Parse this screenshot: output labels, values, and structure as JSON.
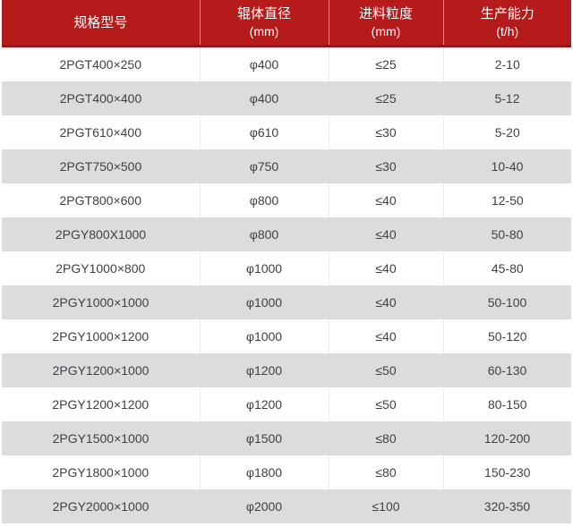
{
  "chart_data": {
    "type": "table",
    "columns": [
      {
        "title": "规格型号",
        "unit": ""
      },
      {
        "title": "辊体直径",
        "unit": "(mm)"
      },
      {
        "title": "进料粒度",
        "unit": "(mm)"
      },
      {
        "title": "生产能力",
        "unit": "(t/h)"
      }
    ],
    "rows": [
      [
        "2PGT400×250",
        "φ400",
        "≤25",
        "2-10"
      ],
      [
        "2PGT400×400",
        "φ400",
        "≤25",
        "5-12"
      ],
      [
        "2PGT610×400",
        "φ610",
        "≤30",
        "5-20"
      ],
      [
        "2PGT750×500",
        "φ750",
        "≤30",
        "10-40"
      ],
      [
        "2PGT800×600",
        "φ800",
        "≤40",
        "12-50"
      ],
      [
        "2PGY800X1000",
        "φ800",
        "≤40",
        "50-80"
      ],
      [
        "2PGY1000×800",
        "φ1000",
        "≤40",
        "45-80"
      ],
      [
        "2PGY1000×1000",
        "φ1000",
        "≤40",
        "50-100"
      ],
      [
        "2PGY1000×1200",
        "φ1000",
        "≤40",
        "50-120"
      ],
      [
        "2PGY1200×1000",
        "φ1200",
        "≤50",
        "60-130"
      ],
      [
        "2PGY1200×1200",
        "φ1200",
        "≤50",
        "80-150"
      ],
      [
        "2PGY1500×1000",
        "φ1500",
        "≤80",
        "120-200"
      ],
      [
        "2PGY1800×1000",
        "φ1800",
        "≤80",
        "150-230"
      ],
      [
        "2PGY2000×1000",
        "φ2000",
        "≤100",
        "320-350"
      ]
    ]
  },
  "colors": {
    "header_bg": "#b51b1b",
    "header_border": "#9d1414",
    "header_divider": "rgba(255,255,255,0.6)",
    "header_text": "#ffffff",
    "row_bg": "#ffffff",
    "row_alt_bg": "#dcdcdc",
    "body_text": "#3e4146",
    "cell_divider": "#ececec"
  }
}
